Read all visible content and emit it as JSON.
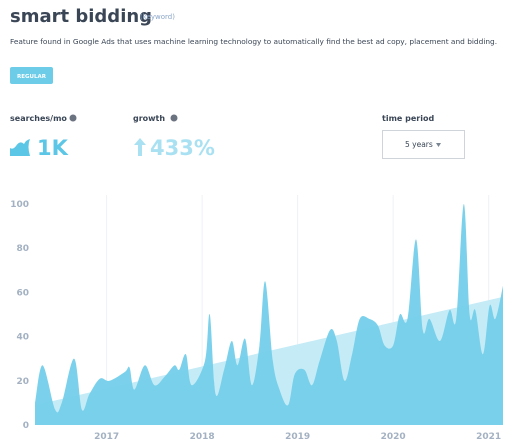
{
  "header": {
    "title": "smart bidding",
    "tag": "(keyword)",
    "description": "Feature found in Google Ads that uses machine learning technology to automatically find the best ad copy, placement and bidding.",
    "badge": "REGULAR"
  },
  "stats": [
    {
      "label": "searches/mo",
      "value": "1K"
    },
    {
      "label": "growth",
      "value": "433%"
    }
  ],
  "time_period": {
    "label": "time period",
    "value": "5 years"
  },
  "chart_data": {
    "type": "area",
    "color": "#74cfea",
    "x": [
      2016.25,
      2016.33,
      2016.46,
      2016.53,
      2016.66,
      2016.74,
      2016.82,
      2016.93,
      2017.03,
      2017.19,
      2017.24,
      2017.29,
      2017.4,
      2017.5,
      2017.61,
      2017.71,
      2017.76,
      2017.83,
      2017.89,
      2018.03,
      2018.08,
      2018.14,
      2018.23,
      2018.31,
      2018.37,
      2018.45,
      2018.52,
      2018.6,
      2018.66,
      2018.74,
      2018.81,
      2018.9,
      2018.97,
      2019.07,
      2019.15,
      2019.23,
      2019.34,
      2019.41,
      2019.49,
      2019.57,
      2019.65,
      2019.75,
      2019.84,
      2019.91,
      2020.0,
      2020.07,
      2020.15,
      2020.24,
      2020.31,
      2020.38,
      2020.49,
      2020.59,
      2020.66,
      2020.74,
      2020.8,
      2020.86,
      2020.94,
      2021.01,
      2021.07,
      2021.15
    ],
    "values": [
      10,
      27,
      7,
      10,
      30,
      7,
      14,
      21,
      20,
      24,
      26,
      16,
      27,
      18,
      22,
      27,
      25,
      32,
      18,
      29,
      50,
      14,
      25,
      38,
      27,
      39,
      18,
      36,
      65,
      29,
      16,
      9,
      23,
      25,
      18,
      29,
      43,
      38,
      20,
      32,
      48,
      48,
      45,
      36,
      36,
      50,
      48,
      84,
      43,
      48,
      38,
      52,
      48,
      100,
      50,
      52,
      32,
      54,
      48,
      63
    ],
    "trend": {
      "x": [
        2016.25,
        2021.15
      ],
      "values": [
        9,
        58
      ],
      "color": "#c4ebf6"
    },
    "xlim": [
      2016.25,
      2021.15
    ],
    "xticks": [
      2017,
      2018,
      2019,
      2020,
      2021
    ],
    "ylim": [
      0,
      100
    ],
    "yticks": [
      0,
      20,
      40,
      60,
      80,
      100
    ],
    "grid": true
  }
}
